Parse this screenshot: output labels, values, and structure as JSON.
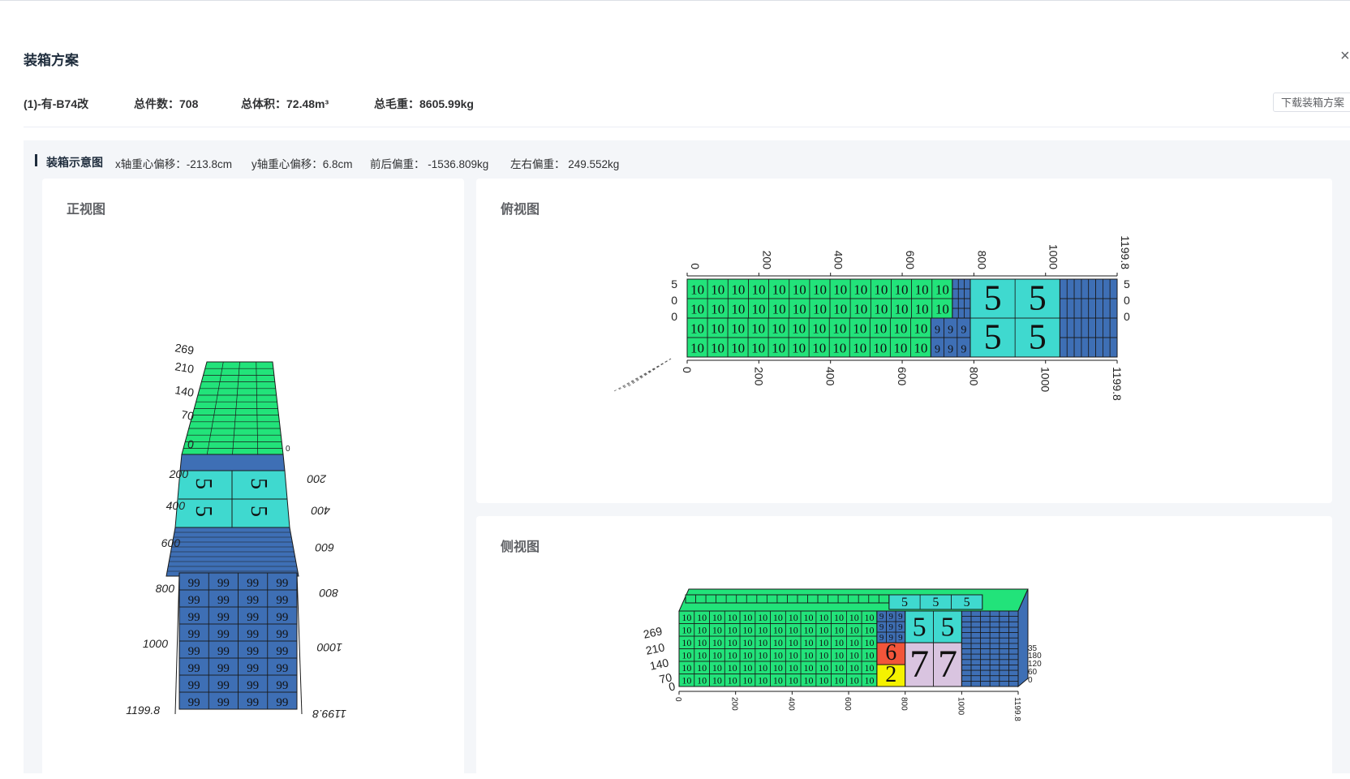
{
  "dialog": {
    "title": "装箱方案",
    "close_label": "×",
    "plan_name": "(1)-有-B74改",
    "total_pieces": "总件数：708",
    "total_volume": "总体积：72.48m³",
    "total_weight": "总毛重：8605.99kg",
    "download_label": "下载装箱方案"
  },
  "section": {
    "title": "装箱示意图",
    "x_offset": "x轴重心偏移：-213.8cm",
    "y_offset": "y轴重心偏移：6.8cm",
    "front_back": "前后偏重： -1536.809kg",
    "left_right": "左右偏重： 249.552kg"
  },
  "views": {
    "front": {
      "title": "正视图",
      "length_ticks": [
        "200",
        "400",
        "600",
        "800",
        "1000",
        "1199.8"
      ],
      "height_ticks": [
        "269",
        "210",
        "140",
        "70",
        "0"
      ]
    },
    "top": {
      "title": "俯视图",
      "length_ticks": [
        "0",
        "200",
        "400",
        "600",
        "800",
        "1000",
        "1199.8"
      ],
      "box_labels": [
        "10",
        "9",
        "5"
      ],
      "side_ticks": [
        "5",
        "0",
        "0"
      ]
    },
    "side": {
      "title": "侧视图",
      "length_ticks": [
        "0",
        "200",
        "400",
        "600",
        "800",
        "1000",
        "1199.8"
      ],
      "height_ticks": [
        "269",
        "210",
        "140",
        "70",
        "0"
      ],
      "width_ticks": [
        "35",
        "180",
        "120",
        "60",
        "0"
      ],
      "box_labels": [
        "10",
        "9",
        "5",
        "6",
        "2",
        "7"
      ]
    }
  },
  "colors": {
    "green": "#22e37a",
    "teal": "#3fd9cf",
    "blue": "#3e6fb5",
    "red": "#f2553a",
    "yellow": "#f5f200",
    "lilac": "#d9c4e0"
  }
}
